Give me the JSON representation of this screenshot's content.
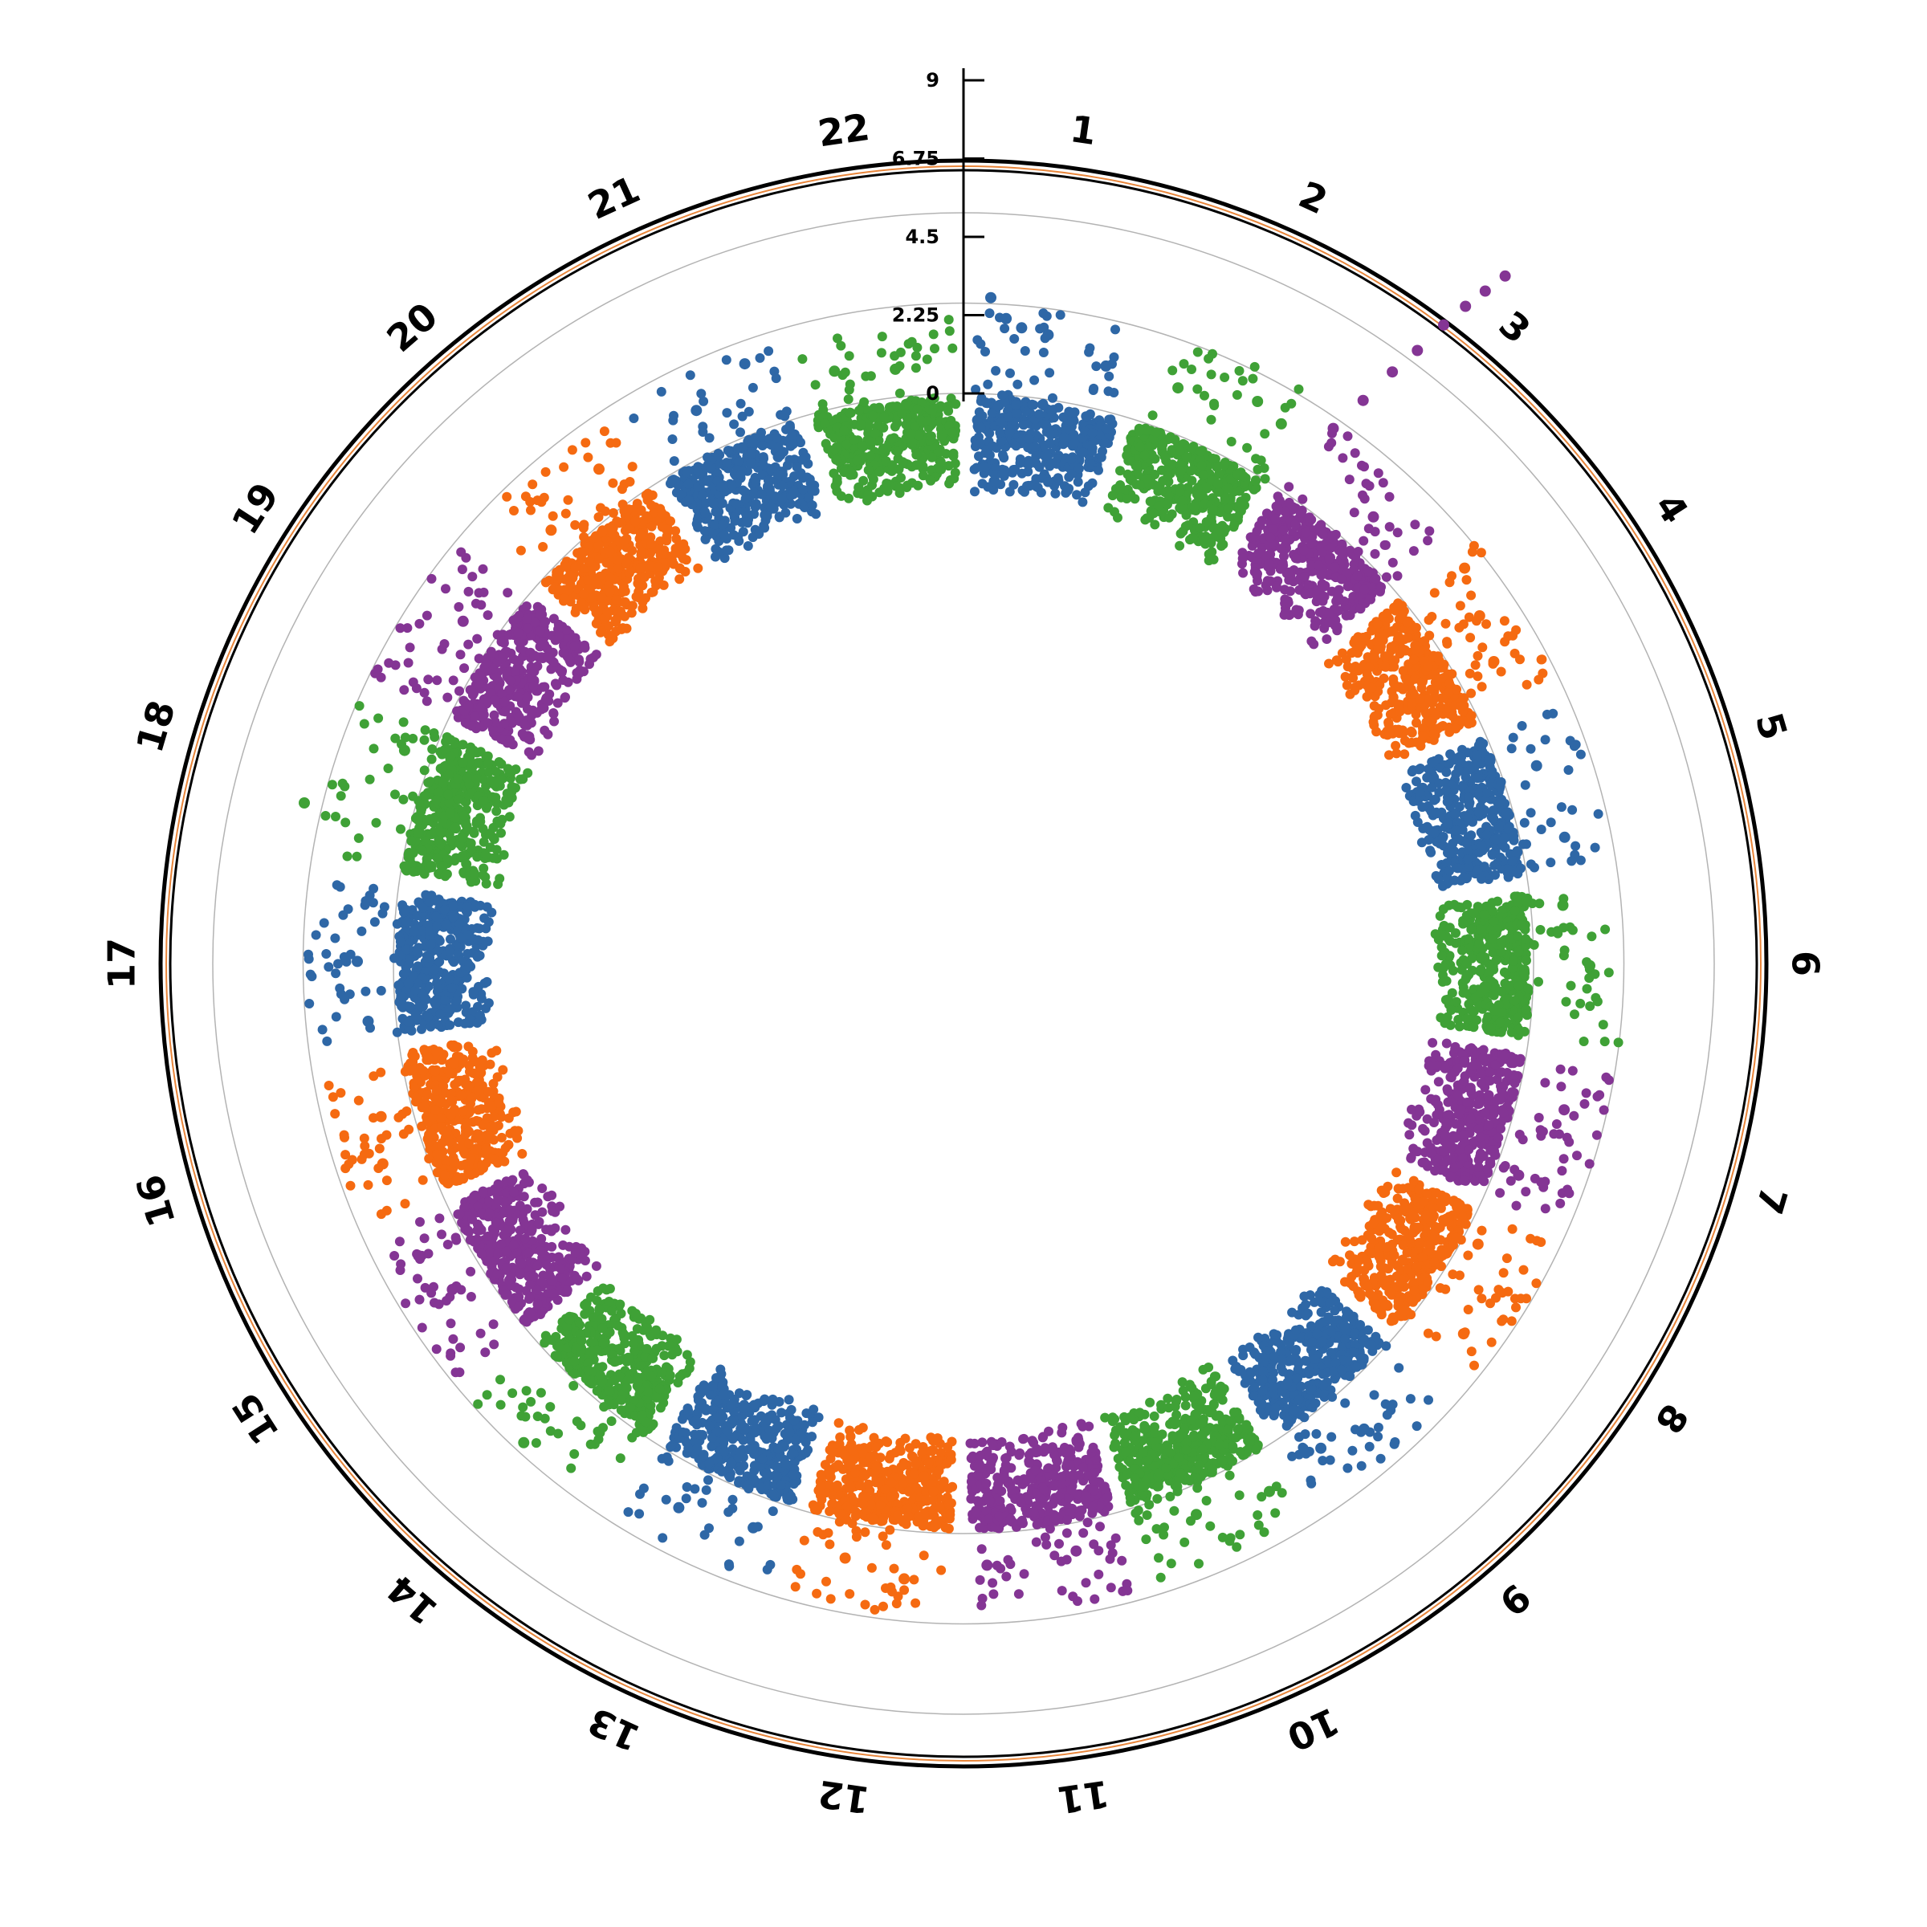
{
  "chart_data": {
    "type": "scatter",
    "subtype": "circular-manhattan",
    "title": "",
    "xlabel": "",
    "ylabel": "",
    "chromosomes": [
      "1",
      "2",
      "3",
      "4",
      "5",
      "6",
      "7",
      "8",
      "9",
      "10",
      "11",
      "12",
      "13",
      "14",
      "15",
      "16",
      "17",
      "18",
      "19",
      "20",
      "21",
      "22"
    ],
    "palette": [
      "#2e67a6",
      "#3fa136",
      "#843594",
      "#f56a11"
    ],
    "ylim": [
      0,
      9
    ],
    "y_ticks": [
      "0",
      "2.25",
      "4.5",
      "6.75",
      "9"
    ],
    "y_tick_values": [
      0,
      2.25,
      4.5,
      6.75,
      9
    ],
    "grid": true,
    "series": [
      {
        "chr": "1",
        "base_max": 1.6,
        "peaks": [
          [
            0.08,
            3.6
          ],
          [
            0.18,
            3.1
          ],
          [
            0.28,
            2.9
          ],
          [
            0.45,
            2.8
          ],
          [
            0.85,
            2.3
          ]
        ]
      },
      {
        "chr": "2",
        "base_max": 1.7,
        "peaks": [
          [
            0.2,
            2.3
          ],
          [
            0.7,
            2.8
          ],
          [
            0.9,
            2.6
          ]
        ]
      },
      {
        "chr": "3",
        "base_max": 1.5,
        "peaks": [
          [
            0.05,
            3.2
          ],
          [
            0.1,
            4.2
          ],
          [
            0.14,
            5.2
          ],
          [
            0.18,
            6.0
          ],
          [
            0.21,
            6.9
          ],
          [
            0.24,
            7.6
          ],
          [
            0.27,
            8.2
          ],
          [
            0.3,
            8.8
          ],
          [
            0.6,
            2.1
          ]
        ]
      },
      {
        "chr": "4",
        "base_max": 1.6,
        "peaks": [
          [
            0.1,
            2.9
          ],
          [
            0.4,
            2.5
          ],
          [
            0.7,
            2.2
          ]
        ]
      },
      {
        "chr": "5",
        "base_max": 1.5,
        "peaks": [
          [
            0.3,
            2.1
          ],
          [
            0.8,
            2.3
          ]
        ]
      },
      {
        "chr": "6",
        "base_max": 1.6,
        "peaks": [
          [
            0.1,
            2.0
          ],
          [
            0.5,
            2.6
          ]
        ]
      },
      {
        "chr": "7",
        "base_max": 1.5,
        "peaks": [
          [
            0.3,
            2.4
          ],
          [
            0.8,
            1.8
          ]
        ]
      },
      {
        "chr": "8",
        "base_max": 1.5,
        "peaks": [
          [
            0.2,
            1.6
          ],
          [
            0.75,
            2.5
          ]
        ]
      },
      {
        "chr": "9",
        "base_max": 1.3,
        "peaks": [
          [
            0.5,
            2.3
          ],
          [
            0.8,
            2.0
          ]
        ]
      },
      {
        "chr": "10",
        "base_max": 1.2,
        "peaks": [
          [
            0.1,
            2.2
          ],
          [
            0.6,
            1.9
          ]
        ]
      },
      {
        "chr": "11",
        "base_max": 1.3,
        "peaks": [
          [
            0.3,
            1.9
          ],
          [
            0.9,
            2.0
          ]
        ]
      },
      {
        "chr": "12",
        "base_max": 1.5,
        "peaks": [
          [
            0.3,
            2.4
          ],
          [
            0.7,
            2.1
          ]
        ]
      },
      {
        "chr": "13",
        "base_max": 1.4,
        "peaks": [
          [
            0.2,
            2.0
          ],
          [
            0.7,
            2.3
          ]
        ]
      },
      {
        "chr": "14",
        "base_max": 1.5,
        "peaks": [
          [
            0.6,
            3.2
          ]
        ]
      },
      {
        "chr": "15",
        "base_max": 1.4,
        "peaks": [
          [
            0.5,
            2.1
          ],
          [
            0.8,
            2.4
          ]
        ]
      },
      {
        "chr": "16",
        "base_max": 1.4,
        "peaks": [
          [
            0.3,
            2.3
          ],
          [
            0.6,
            2.0
          ]
        ]
      },
      {
        "chr": "17",
        "base_max": 1.5,
        "peaks": [
          [
            0.1,
            1.9
          ],
          [
            0.5,
            2.1
          ]
        ]
      },
      {
        "chr": "18",
        "base_max": 1.5,
        "peaks": [
          [
            0.3,
            3.9
          ],
          [
            0.8,
            1.9
          ]
        ]
      },
      {
        "chr": "19",
        "base_max": 1.5,
        "peaks": [
          [
            0.6,
            2.1
          ]
        ]
      },
      {
        "chr": "20",
        "base_max": 1.4,
        "peaks": [
          [
            0.3,
            1.9
          ],
          [
            0.8,
            2.3
          ]
        ]
      },
      {
        "chr": "21",
        "base_max": 1.4,
        "peaks": [
          [
            0.4,
            2.3
          ],
          [
            0.8,
            2.9
          ]
        ]
      },
      {
        "chr": "22",
        "base_max": 1.2,
        "peaks": [
          [
            0.2,
            2.1
          ],
          [
            0.6,
            1.9
          ]
        ]
      }
    ]
  }
}
